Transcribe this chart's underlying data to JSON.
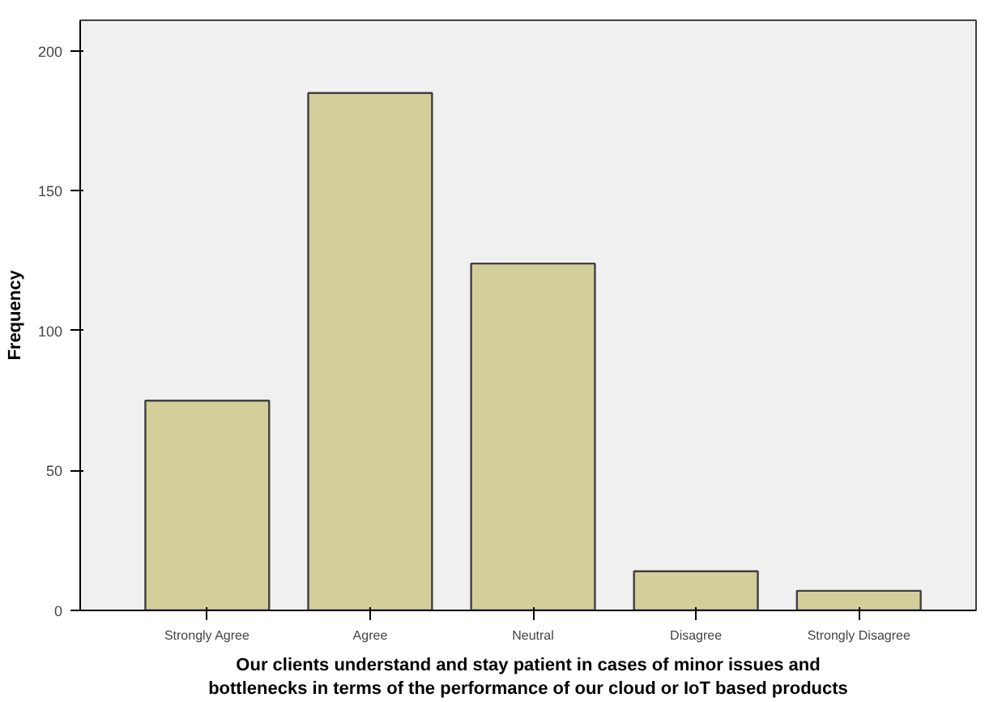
{
  "chart_data": {
    "type": "bar",
    "ylabel": "Frequency",
    "xlabel": "Our clients understand and stay patient in cases of minor issues and bottlenecks in terms of the performance of our cloud or IoT based products",
    "categories": [
      "Strongly Agree",
      "Agree",
      "Neutral",
      "Disagree",
      "Strongly Disagree"
    ],
    "values": [
      75,
      185,
      124,
      14,
      7
    ],
    "color": "#d4cf9a",
    "ylim": [
      0,
      211
    ],
    "yticks": [
      0,
      50,
      100,
      150,
      200
    ],
    "grid": false
  }
}
